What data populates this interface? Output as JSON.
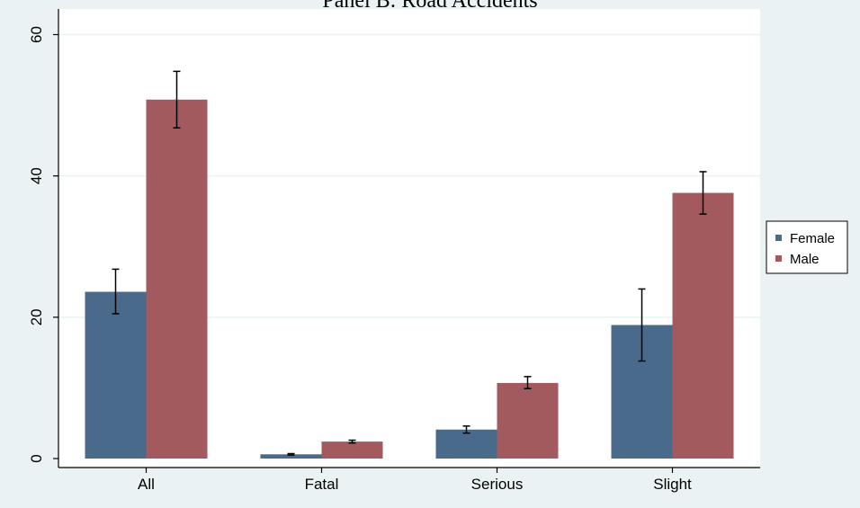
{
  "chart_data": {
    "type": "bar",
    "title": "Panel B: Road Accidents",
    "xlabel": "",
    "ylabel": "",
    "categories": [
      "All",
      "Fatal",
      "Serious",
      "Slight"
    ],
    "ylim": [
      0,
      60
    ],
    "yticks": [
      0,
      20,
      40,
      60
    ],
    "grid": true,
    "legend_position": "right",
    "series": [
      {
        "name": "Female",
        "color": "#4a6a8c",
        "values": [
          23.6,
          0.6,
          4.1,
          18.9
        ],
        "err_low": [
          20.5,
          0.5,
          3.6,
          13.8
        ],
        "err_high": [
          26.8,
          0.7,
          4.6,
          24.0
        ]
      },
      {
        "name": "Male",
        "color": "#a35a5e",
        "values": [
          50.8,
          2.4,
          10.7,
          37.6
        ],
        "err_low": [
          46.8,
          2.2,
          9.9,
          34.6
        ],
        "err_high": [
          54.8,
          2.6,
          11.6,
          40.6
        ]
      }
    ]
  }
}
